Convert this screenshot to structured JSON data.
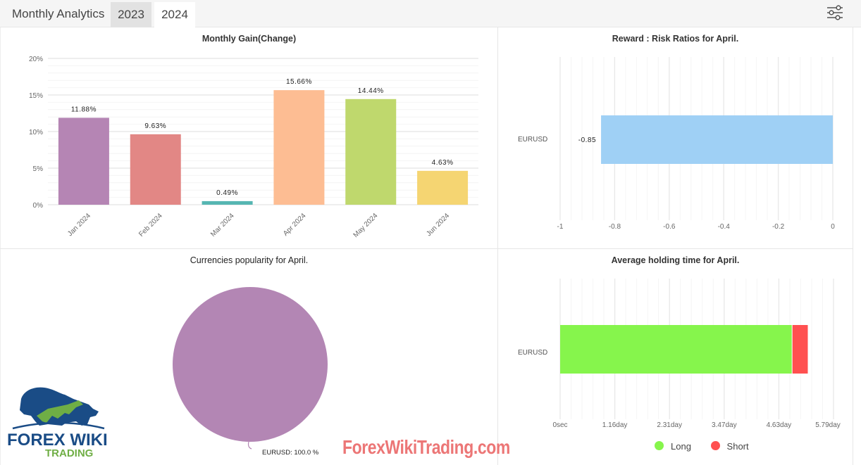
{
  "header": {
    "title": "Monthly Analytics",
    "tabs": [
      {
        "label": "2023",
        "active": false
      },
      {
        "label": "2024",
        "active": true
      }
    ],
    "filter_icon": "sliders-icon"
  },
  "watermark": "ForexWikiTrading.com",
  "logo": {
    "line1": "FOREX WIKI",
    "line2": "TRADING"
  },
  "chart_data": [
    {
      "type": "bar",
      "title": "Monthly Gain(Change)",
      "categories": [
        "Jan 2024",
        "Feb 2024",
        "Mar 2024",
        "Apr 2024",
        "May 2024",
        "Jun 2024"
      ],
      "values": [
        11.88,
        9.63,
        0.49,
        15.66,
        14.44,
        4.63
      ],
      "labels": [
        "11.88%",
        "9.63%",
        "0.49%",
        "15.66%",
        "14.44%",
        "4.63%"
      ],
      "colors": [
        "#b585b4",
        "#e28785",
        "#56b6b2",
        "#fdbd93",
        "#bfd86d",
        "#f5d572"
      ],
      "yticks": [
        "0%",
        "5%",
        "10%",
        "15%",
        "20%"
      ],
      "ylim": [
        0,
        20
      ],
      "xlabel": "",
      "ylabel": "",
      "grid": true
    },
    {
      "type": "bar",
      "orientation": "horizontal",
      "title": "Reward : Risk Ratios for April.",
      "categories": [
        "EURUSD"
      ],
      "values": [
        -0.85
      ],
      "labels": [
        "-0.85"
      ],
      "color": "#9fd0f5",
      "xticks": [
        "-1",
        "-0.8",
        "-0.6",
        "-0.4",
        "-0.2",
        "0"
      ],
      "xlim": [
        -1,
        0
      ],
      "grid": true
    },
    {
      "type": "pie",
      "title": "Currencies popularity for April.",
      "categories": [
        "EURUSD"
      ],
      "values": [
        100.0
      ],
      "labels": [
        "EURUSD: 100.0 %"
      ],
      "colors": [
        "#b386b4"
      ]
    },
    {
      "type": "bar",
      "orientation": "horizontal",
      "stacked": true,
      "title": "Average holding time for April.",
      "categories": [
        "EURUSD"
      ],
      "series": [
        {
          "name": "Long",
          "values": [
            4.92
          ],
          "color": "#86f54c"
        },
        {
          "name": "Short",
          "values": [
            0.34
          ],
          "color": "#ff5050"
        }
      ],
      "xticks": [
        "0sec",
        "1.16day",
        "2.31day",
        "3.47day",
        "4.63day",
        "5.79day"
      ],
      "xlim": [
        0,
        5.79
      ],
      "legend": [
        "Long",
        "Short"
      ],
      "legend_position": "bottom",
      "grid": true
    }
  ]
}
